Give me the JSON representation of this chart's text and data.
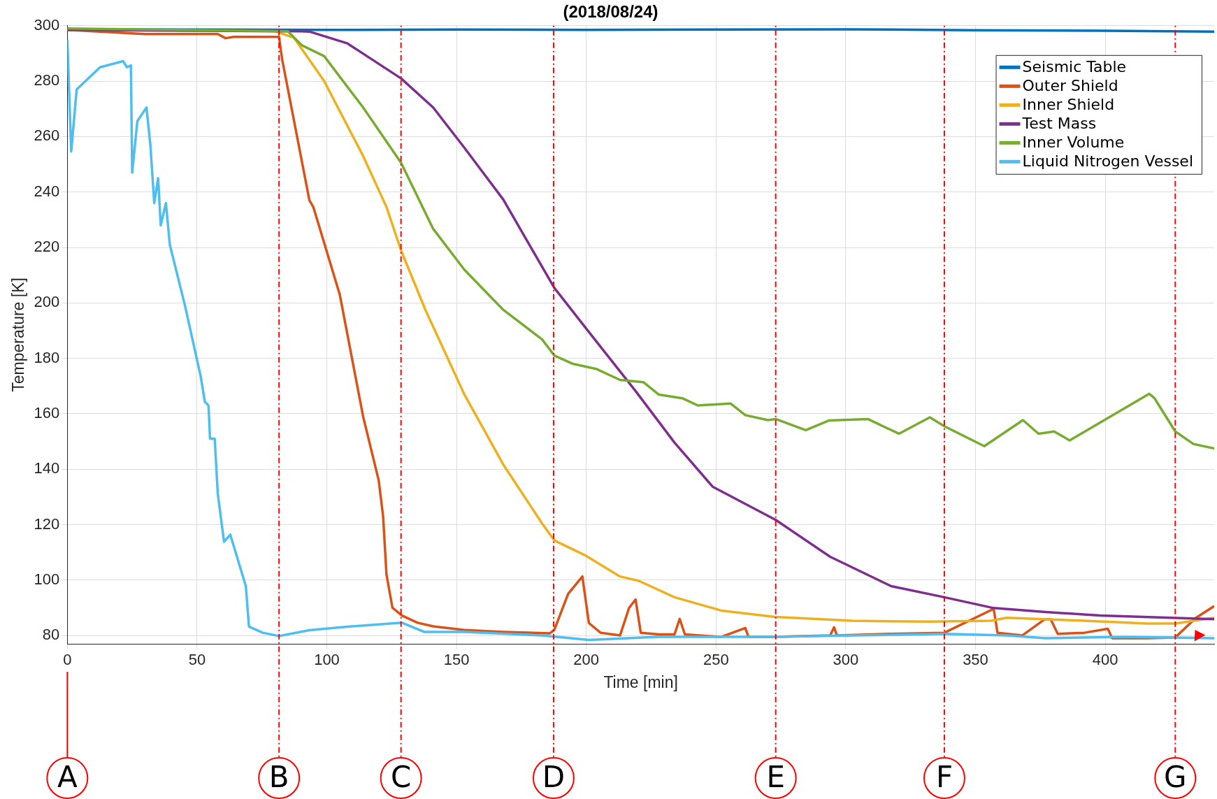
{
  "chart_data": {
    "type": "line",
    "title": "(2018/08/24)",
    "xlabel": "Time [min]",
    "ylabel": "Temperature [K]",
    "xlim": [
      0,
      442
    ],
    "xticks": [
      0,
      50,
      100,
      150,
      200,
      250,
      300,
      350,
      400
    ],
    "ylim": [
      77,
      300
    ],
    "yticks": [
      80,
      100,
      120,
      140,
      160,
      180,
      200,
      220,
      240,
      260,
      280,
      300
    ],
    "grid": true,
    "legend": "top right",
    "marker": "none",
    "line_style": "solid",
    "series": [
      {
        "name": "Seismic Table",
        "color": "#0072bd",
        "x": [
          0,
          50,
          100,
          150,
          200,
          250,
          300,
          350,
          400,
          442
        ],
        "values": [
          298.7,
          298.6,
          298.5,
          298.6,
          298.5,
          298.6,
          298.7,
          298.4,
          298.2,
          297.9
        ]
      },
      {
        "name": "Outer Shield",
        "color": "#d95319",
        "x": [
          0,
          30,
          58,
          61,
          64,
          81.6,
          82.8,
          93.3,
          94.8,
          105,
          114,
          120,
          121.7,
          123,
          125.3,
          129,
          135,
          141,
          153,
          168,
          186,
          187.7,
          193,
          198.5,
          201,
          205.5,
          213,
          216.5,
          219,
          221,
          228,
          234,
          236,
          238,
          252,
          261.3,
          262.5,
          272.6,
          294,
          295.5,
          296.6,
          317.5,
          338,
          357,
          358.5,
          368,
          376.6,
          379,
          381.7,
          392,
          401,
          402.7,
          416,
          427,
          435,
          442
        ],
        "values": [
          298.5,
          297,
          297,
          295.5,
          296,
          296,
          287.8,
          237,
          234.6,
          203,
          159,
          136,
          123,
          102,
          90,
          87.2,
          84.6,
          83.3,
          82,
          81.3,
          80.8,
          82.1,
          95,
          101.3,
          84.5,
          81,
          80,
          90,
          93,
          81,
          80.4,
          80.4,
          86,
          80.4,
          79.5,
          82.7,
          79.5,
          79.5,
          80,
          83,
          80,
          80.6,
          81,
          89.6,
          81,
          80,
          85.8,
          85.8,
          80.6,
          81,
          82.4,
          79,
          79,
          79.3,
          86.4,
          90.6
        ]
      },
      {
        "name": "Inner Shield",
        "color": "#edb120",
        "x": [
          0,
          80,
          87.3,
          99,
          114,
          123,
          128.6,
          138,
          153,
          168,
          183,
          187.7,
          199.4,
          213,
          220.3,
          234,
          252,
          272.6,
          302.5,
          332.4,
          356,
          362,
          392,
          416,
          427,
          442
        ],
        "values": [
          298.5,
          298,
          295.7,
          280,
          253,
          234.6,
          219,
          197.5,
          167,
          141.7,
          120.4,
          114.3,
          109,
          101.3,
          99.7,
          93.8,
          89,
          86.7,
          85.3,
          85,
          85.3,
          86.4,
          85.3,
          84.3,
          84.3,
          86.4
        ]
      },
      {
        "name": "Test Mass",
        "color": "#7e2f8e",
        "x": [
          0,
          90,
          93.3,
          108,
          128.6,
          141,
          153,
          168,
          187.7,
          201,
          219,
          234,
          248.7,
          273,
          294,
          317.5,
          338,
          357,
          377,
          398,
          442
        ],
        "values": [
          298.5,
          298,
          297.9,
          293.6,
          281,
          270.5,
          256,
          237.3,
          205.4,
          189.5,
          168.2,
          149.6,
          133.7,
          121.7,
          108.4,
          97.8,
          93.8,
          89.9,
          88.5,
          87.2,
          85.9
        ]
      },
      {
        "name": "Inner Volume",
        "color": "#77ac30",
        "x": [
          0,
          85,
          90.3,
          99,
          114,
          128.6,
          141,
          153,
          168,
          183,
          187.7,
          194.9,
          203.8,
          213,
          222,
          228,
          237,
          243,
          255.6,
          261.3,
          270,
          273,
          284.6,
          293.6,
          308.5,
          320.5,
          332.4,
          338,
          353.4,
          368.3,
          374.3,
          380.3,
          386.3,
          417,
          419,
          427,
          434,
          442
        ],
        "values": [
          299,
          298,
          293,
          289,
          270.5,
          250.6,
          226.7,
          212,
          197.5,
          186.8,
          181,
          178,
          176.2,
          172.2,
          171.4,
          166.9,
          165.6,
          163,
          163.7,
          159.5,
          157.7,
          158.1,
          154.1,
          157.6,
          158.1,
          152.8,
          158.7,
          155.5,
          148.3,
          157.7,
          152.8,
          153.6,
          150.4,
          167.2,
          165.6,
          153.6,
          149.1,
          147.5
        ]
      },
      {
        "name": "Liquid Nitrogen Vessel",
        "color": "#4dbeee",
        "x": [
          0,
          1.5,
          3.6,
          12.6,
          21.5,
          23,
          24.5,
          25,
          27,
          28,
          30.5,
          32,
          33.5,
          35,
          36,
          38,
          39.5,
          45.4,
          51.4,
          53,
          54.4,
          55,
          56.8,
          58,
          60.4,
          62.8,
          68.8,
          70,
          75.3,
          81.6,
          93.3,
          108,
          129,
          137.5,
          153,
          183,
          201,
          228,
          272.6,
          302.5,
          338,
          362,
          377,
          407,
          442
        ],
        "values": [
          295,
          254.6,
          277,
          285,
          287.2,
          285,
          285.7,
          247,
          265.6,
          267,
          270.5,
          257,
          236,
          245,
          228,
          236,
          221,
          198.8,
          173.5,
          164.3,
          163,
          151,
          151,
          131,
          113.8,
          116.4,
          97.8,
          83.2,
          81,
          79.8,
          81.9,
          83.2,
          84.6,
          81.3,
          81.3,
          80,
          78.4,
          79.5,
          79.5,
          80,
          80.6,
          80,
          79,
          79.5,
          79
        ]
      }
    ],
    "ref_lines": [
      {
        "axis": "x",
        "value": 0,
        "label": "A",
        "color": "#ff0000",
        "line_style": "solid"
      },
      {
        "axis": "x",
        "value": 81.6,
        "label": "B",
        "color": "#ff0000",
        "line_style": "dotted"
      },
      {
        "axis": "x",
        "value": 128.6,
        "label": "C",
        "color": "#ff0000",
        "line_style": "dotted"
      },
      {
        "axis": "x",
        "value": 187.4,
        "label": "D",
        "color": "#ff0000",
        "line_style": "dotted"
      },
      {
        "axis": "x",
        "value": 273,
        "label": "E",
        "color": "#ff0000",
        "line_style": "dotted"
      },
      {
        "axis": "x",
        "value": 338,
        "label": "F",
        "color": "#ff0000",
        "line_style": "dotted"
      },
      {
        "axis": "x",
        "value": 427,
        "label": "G",
        "color": "#ff0000",
        "line_style": "dotted"
      }
    ]
  }
}
